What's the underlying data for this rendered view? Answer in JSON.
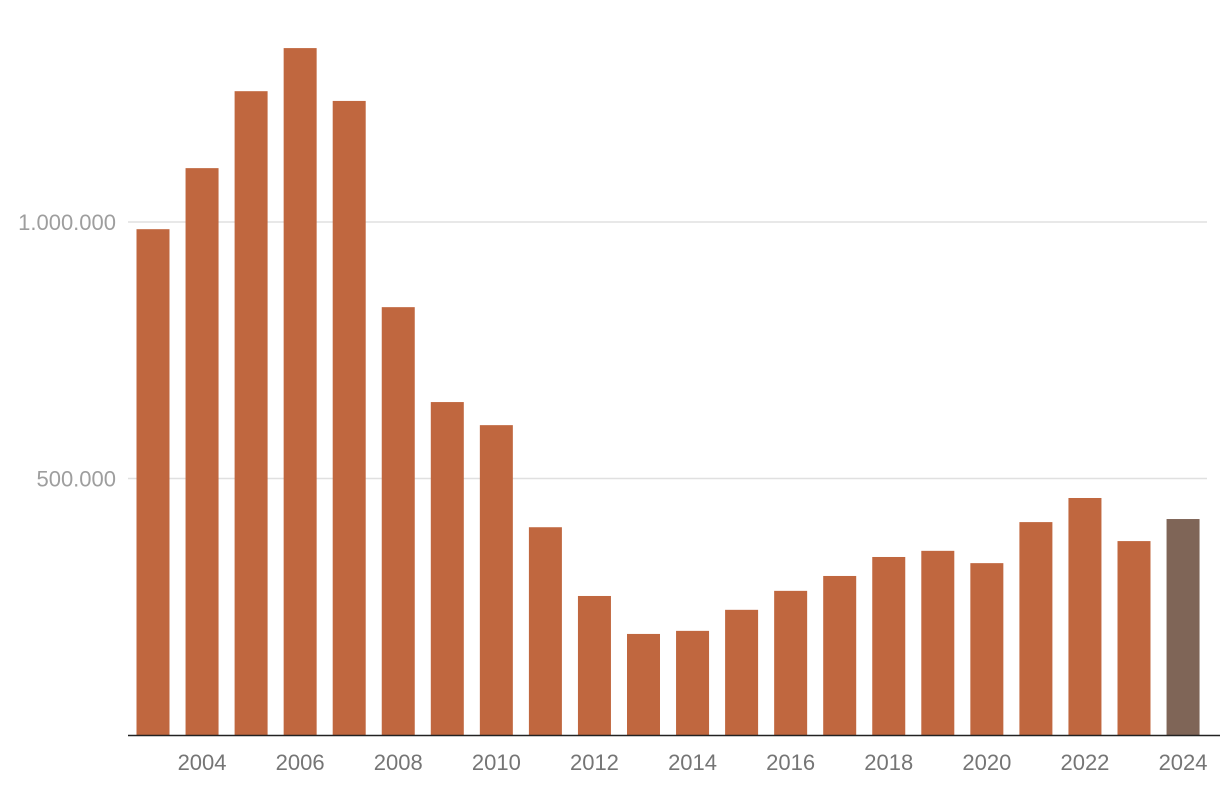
{
  "chart_data": {
    "type": "bar",
    "title": "",
    "xlabel": "",
    "ylabel": "",
    "ylim": [
      0,
      1400000
    ],
    "grid": true,
    "y_ticks": [
      {
        "value": 500000,
        "label": "500.000"
      },
      {
        "value": 1000000,
        "label": "1.000.000"
      }
    ],
    "categories": [
      "2003",
      "2004",
      "2005",
      "2006",
      "2007",
      "2008",
      "2009",
      "2010",
      "2011",
      "2012",
      "2013",
      "2014",
      "2015",
      "2016",
      "2017",
      "2018",
      "2019",
      "2020",
      "2021",
      "2022",
      "2023",
      "2024"
    ],
    "x_tick_labels": [
      "2004",
      "2006",
      "2008",
      "2010",
      "2012",
      "2014",
      "2016",
      "2018",
      "2020",
      "2022",
      "2024"
    ],
    "values": [
      986000,
      1105000,
      1255000,
      1339000,
      1236000,
      834000,
      649000,
      604000,
      405000,
      271000,
      197000,
      203000,
      244000,
      281000,
      310000,
      347000,
      359000,
      335000,
      415000,
      462000,
      378000,
      421000
    ],
    "colors": {
      "bar": "#c0673f",
      "highlight": "#7f6557",
      "grid": "#e0e0e0",
      "axis": "#222222",
      "tick_text": "#757575",
      "y_tick_text": "#9e9e9e"
    },
    "highlighted_category": "2024"
  }
}
